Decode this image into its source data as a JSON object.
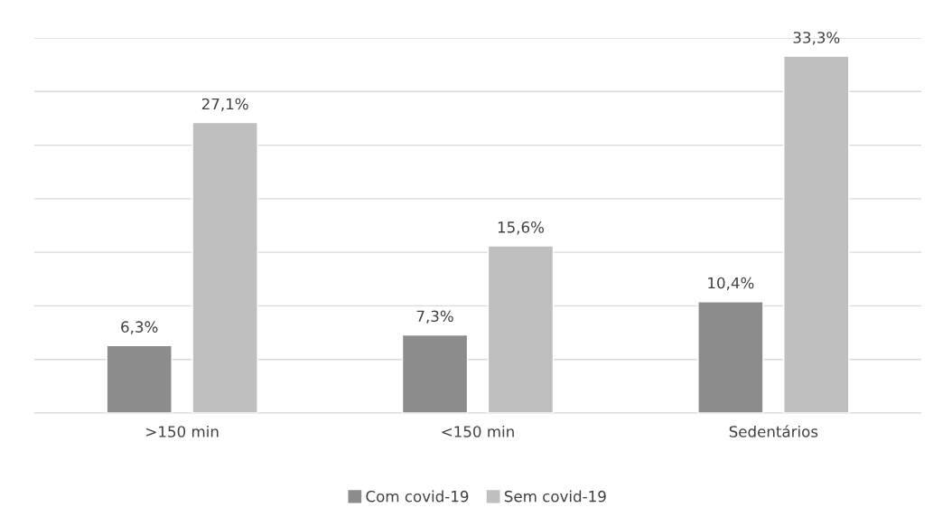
{
  "chart_data": {
    "type": "bar",
    "categories": [
      ">150 min",
      "<150 min",
      "Sedentários"
    ],
    "series": [
      {
        "name": "Com covid-19",
        "color": "#8c8c8c",
        "values": [
          6.3,
          7.3,
          10.4
        ],
        "value_labels": [
          "6,3%",
          "7,3%",
          "10,4%"
        ]
      },
      {
        "name": "Sem covid-19",
        "color": "#bfbfbf",
        "values": [
          27.1,
          15.6,
          33.3
        ],
        "value_labels": [
          "27,1%",
          "15,6%",
          "33,3%"
        ]
      }
    ],
    "ylim": [
      0,
      35
    ],
    "yticks": [
      {
        "value": 0,
        "label": null
      },
      {
        "value": 5,
        "label": null
      },
      {
        "value": 10,
        "label": null
      },
      {
        "value": 15,
        "label": null
      },
      {
        "value": 20,
        "label": null
      },
      {
        "value": 25,
        "label": null
      },
      {
        "value": 30,
        "label": null
      },
      {
        "value": 35,
        "label": null
      }
    ],
    "tick_labels": "x",
    "grid": "y",
    "legend": "bottom"
  }
}
